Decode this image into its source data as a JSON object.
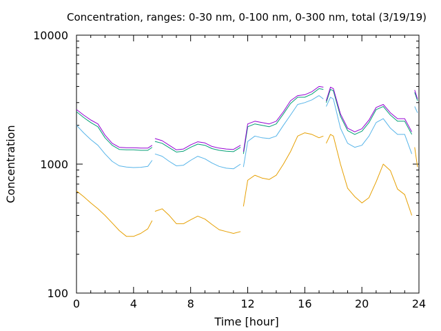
{
  "chart_data": {
    "type": "line",
    "title": "Concentration, ranges: 0-30 nm, 0-100 nm, 0-300 nm, total (3/19/19)",
    "xlabel": "Time [hour]",
    "ylabel": "Concentration",
    "xlim": [
      0,
      24
    ],
    "ylim": [
      100,
      10000
    ],
    "y_scale": "log",
    "x_ticks": [
      "0",
      "4",
      "8",
      "12",
      "16",
      "20",
      "24"
    ],
    "y_ticks": [
      "100",
      "1000",
      "10000"
    ],
    "grid": false,
    "legend": "none",
    "series": [
      {
        "color": "#e69f00",
        "segments": [
          {
            "x": [
              0,
              0.5,
              1,
              1.5,
              2,
              2.5,
              3,
              3.5,
              4,
              4.5,
              5,
              5.3
            ],
            "y": [
              620,
              560,
              500,
              450,
              400,
              350,
              305,
              275,
              275,
              290,
              315,
              365
            ]
          },
          {
            "x": [
              5.5,
              6,
              6.5,
              7,
              7.5,
              8,
              8.5,
              9,
              9.5,
              10,
              10.5,
              11,
              11.5
            ],
            "y": [
              430,
              450,
              400,
              345,
              345,
              370,
              395,
              375,
              340,
              310,
              300,
              290,
              300
            ]
          },
          {
            "x": [
              11.7,
              12,
              12.5,
              13,
              13.5,
              14,
              14.5,
              15,
              15.5,
              16,
              16.5,
              17,
              17.3
            ],
            "y": [
              470,
              750,
              820,
              780,
              760,
              820,
              1000,
              1250,
              1650,
              1750,
              1700,
              1600,
              1650
            ]
          },
          {
            "x": [
              17.5,
              17.8,
              18,
              18.5,
              19,
              19.5,
              20,
              20.5,
              21,
              21.5,
              22,
              22.5,
              23,
              23.5
            ],
            "y": [
              1450,
              1700,
              1650,
              1000,
              650,
              560,
              500,
              550,
              730,
              1000,
              890,
              640,
              580,
              400
            ]
          },
          {
            "x": [
              23.7,
              23.9
            ],
            "y": [
              1350,
              950
            ]
          }
        ]
      },
      {
        "color": "#56b4e9",
        "segments": [
          {
            "x": [
              0,
              0.5,
              1,
              1.5,
              2,
              2.5,
              3,
              3.5,
              4,
              4.5,
              5,
              5.3
            ],
            "y": [
              2000,
              1750,
              1550,
              1400,
              1200,
              1050,
              970,
              950,
              940,
              945,
              960,
              1070
            ]
          },
          {
            "x": [
              5.5,
              6,
              6.5,
              7,
              7.5,
              8,
              8.5,
              9,
              9.5,
              10,
              10.5,
              11,
              11.5
            ],
            "y": [
              1200,
              1150,
              1050,
              970,
              980,
              1070,
              1150,
              1100,
              1020,
              960,
              930,
              920,
              1000
            ]
          },
          {
            "x": [
              11.7,
              12,
              12.5,
              13,
              13.5,
              14,
              14.5,
              15,
              15.5,
              16,
              16.5,
              17,
              17.3
            ],
            "y": [
              950,
              1500,
              1650,
              1600,
              1580,
              1650,
              2000,
              2400,
              2900,
              3000,
              3150,
              3400,
              3200
            ]
          },
          {
            "x": [
              17.5,
              17.8,
              18,
              18.5,
              19,
              19.5,
              20,
              20.5,
              21,
              21.5,
              22,
              22.5,
              23,
              23.5
            ],
            "y": [
              2800,
              3300,
              3200,
              1900,
              1450,
              1350,
              1400,
              1650,
              2100,
              2250,
              1900,
              1700,
              1700,
              1200
            ]
          },
          {
            "x": [
              23.7,
              23.9
            ],
            "y": [
              2800,
              2500
            ]
          }
        ]
      },
      {
        "color": "#009e73",
        "segments": [
          {
            "x": [
              0,
              0.5,
              1,
              1.5,
              2,
              2.5,
              3,
              3.5,
              4,
              4.5,
              5,
              5.3
            ],
            "y": [
              2550,
              2300,
              2100,
              1950,
              1600,
              1400,
              1300,
              1290,
              1290,
              1280,
              1280,
              1350
            ]
          },
          {
            "x": [
              5.5,
              6,
              6.5,
              7,
              7.5,
              8,
              8.5,
              9,
              9.5,
              10,
              10.5,
              11,
              11.5
            ],
            "y": [
              1500,
              1450,
              1340,
              1240,
              1260,
              1350,
              1430,
              1400,
              1320,
              1280,
              1260,
              1250,
              1350
            ]
          },
          {
            "x": [
              11.7,
              12,
              12.5,
              13,
              13.5,
              14,
              14.5,
              15,
              15.5,
              16,
              16.5,
              17,
              17.3
            ],
            "y": [
              1200,
              1950,
              2050,
              2000,
              1950,
              2050,
              2450,
              2950,
              3300,
              3300,
              3500,
              3850,
              3800
            ]
          },
          {
            "x": [
              17.5,
              17.8,
              18,
              18.5,
              19,
              19.5,
              20,
              20.5,
              21,
              21.5,
              22,
              22.5,
              23,
              23.5
            ],
            "y": [
              3000,
              3800,
              3700,
              2350,
              1820,
              1700,
              1800,
              2100,
              2650,
              2800,
              2400,
              2150,
              2150,
              1700
            ]
          },
          {
            "x": [
              23.7,
              23.9
            ],
            "y": [
              3600,
              3100
            ]
          }
        ]
      },
      {
        "color": "#9400d3",
        "segments": [
          {
            "x": [
              0,
              0.5,
              1,
              1.5,
              2,
              2.5,
              3,
              3.5,
              4,
              4.5,
              5,
              5.3
            ],
            "y": [
              2650,
              2400,
              2200,
              2050,
              1680,
              1450,
              1350,
              1340,
              1340,
              1330,
              1330,
              1400
            ]
          },
          {
            "x": [
              5.5,
              6,
              6.5,
              7,
              7.5,
              8,
              8.5,
              9,
              9.5,
              10,
              10.5,
              11,
              11.5
            ],
            "y": [
              1580,
              1520,
              1400,
              1290,
              1310,
              1410,
              1490,
              1460,
              1370,
              1330,
              1310,
              1300,
              1400
            ]
          },
          {
            "x": [
              11.7,
              12,
              12.5,
              13,
              13.5,
              14,
              14.5,
              15,
              15.5,
              16,
              16.5,
              17,
              17.3
            ],
            "y": [
              1250,
              2050,
              2150,
              2100,
              2050,
              2150,
              2550,
              3100,
              3400,
              3450,
              3650,
              4000,
              3950
            ]
          },
          {
            "x": [
              17.5,
              17.8,
              18,
              18.5,
              19,
              19.5,
              20,
              20.5,
              21,
              21.5,
              22,
              22.5,
              23,
              23.5
            ],
            "y": [
              3100,
              3950,
              3850,
              2450,
              1900,
              1780,
              1880,
              2200,
              2750,
              2900,
              2500,
              2250,
              2250,
              1780
            ]
          },
          {
            "x": [
              23.7,
              23.9
            ],
            "y": [
              3750,
              3200
            ]
          }
        ]
      }
    ]
  }
}
